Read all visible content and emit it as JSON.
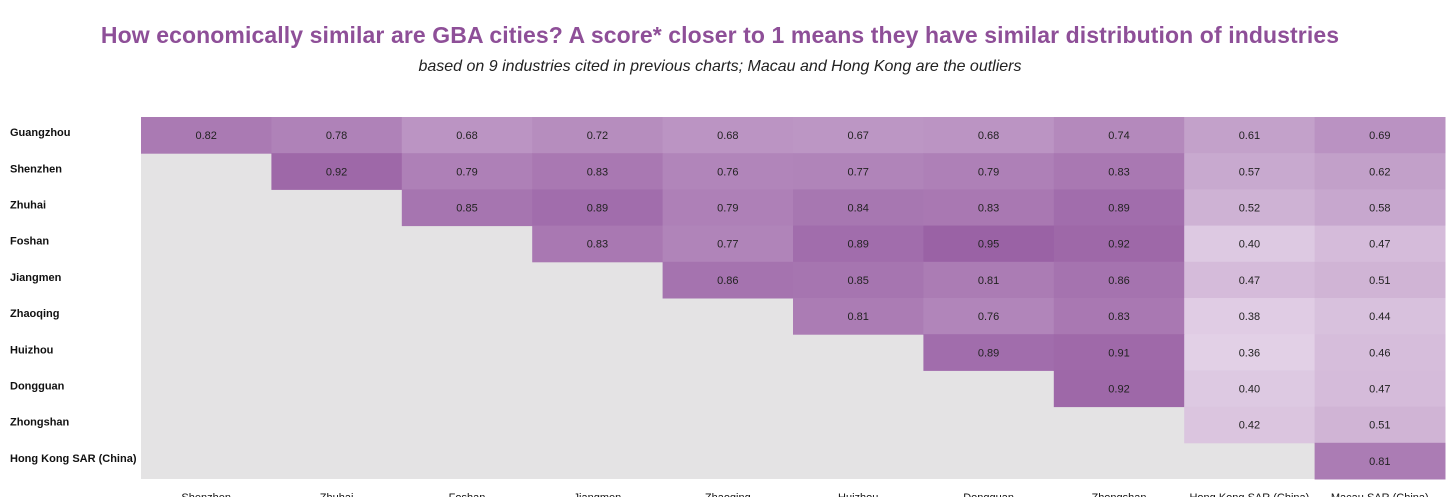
{
  "title": "How economically similar are GBA cities? A score* closer to 1 means they have similar distribution of industries",
  "subtitle": "based on 9 industries cited in previous charts; Macau and Hong Kong are the outliers",
  "colors": {
    "background_cell": "#e4e3e4",
    "scale_low": "#e2d0e6",
    "scale_high": "#9a62a5",
    "title": "#8e4f98"
  },
  "chart_data": {
    "type": "heatmap",
    "title": "How economically similar are GBA cities? A score* closer to 1 means they have similar distribution of industries",
    "subtitle": "based on 9 industries cited in previous charts; Macau and Hong Kong are the outliers",
    "rows": [
      "Guangzhou",
      "Shenzhen",
      "Zhuhai",
      "Foshan",
      "Jiangmen",
      "Zhaoqing",
      "Huizhou",
      "Dongguan",
      "Zhongshan",
      "Hong Kong SAR (China)"
    ],
    "columns": [
      "Shenzhen",
      "Zhuhai",
      "Foshan",
      "Jiangmen",
      "Zhaoqing",
      "Huizhou",
      "Dongguan",
      "Zhongshan",
      "Hong Kong SAR (China)",
      "Macau SAR (China)"
    ],
    "values": [
      [
        0.82,
        0.78,
        0.68,
        0.72,
        0.68,
        0.67,
        0.68,
        0.74,
        0.61,
        0.69
      ],
      [
        null,
        0.92,
        0.79,
        0.83,
        0.76,
        0.77,
        0.79,
        0.83,
        0.57,
        0.62
      ],
      [
        null,
        null,
        0.85,
        0.89,
        0.79,
        0.84,
        0.83,
        0.89,
        0.52,
        0.58
      ],
      [
        null,
        null,
        null,
        0.83,
        0.77,
        0.89,
        0.95,
        0.92,
        0.4,
        0.47
      ],
      [
        null,
        null,
        null,
        null,
        0.86,
        0.85,
        0.81,
        0.86,
        0.47,
        0.51
      ],
      [
        null,
        null,
        null,
        null,
        null,
        0.81,
        0.76,
        0.83,
        0.38,
        0.44
      ],
      [
        null,
        null,
        null,
        null,
        null,
        null,
        0.89,
        0.91,
        0.36,
        0.46
      ],
      [
        null,
        null,
        null,
        null,
        null,
        null,
        null,
        0.92,
        0.4,
        0.47
      ],
      [
        null,
        null,
        null,
        null,
        null,
        null,
        null,
        null,
        0.42,
        0.51
      ],
      [
        null,
        null,
        null,
        null,
        null,
        null,
        null,
        null,
        null,
        0.81
      ]
    ],
    "value_range": [
      0.36,
      0.95
    ],
    "legend": "none"
  }
}
